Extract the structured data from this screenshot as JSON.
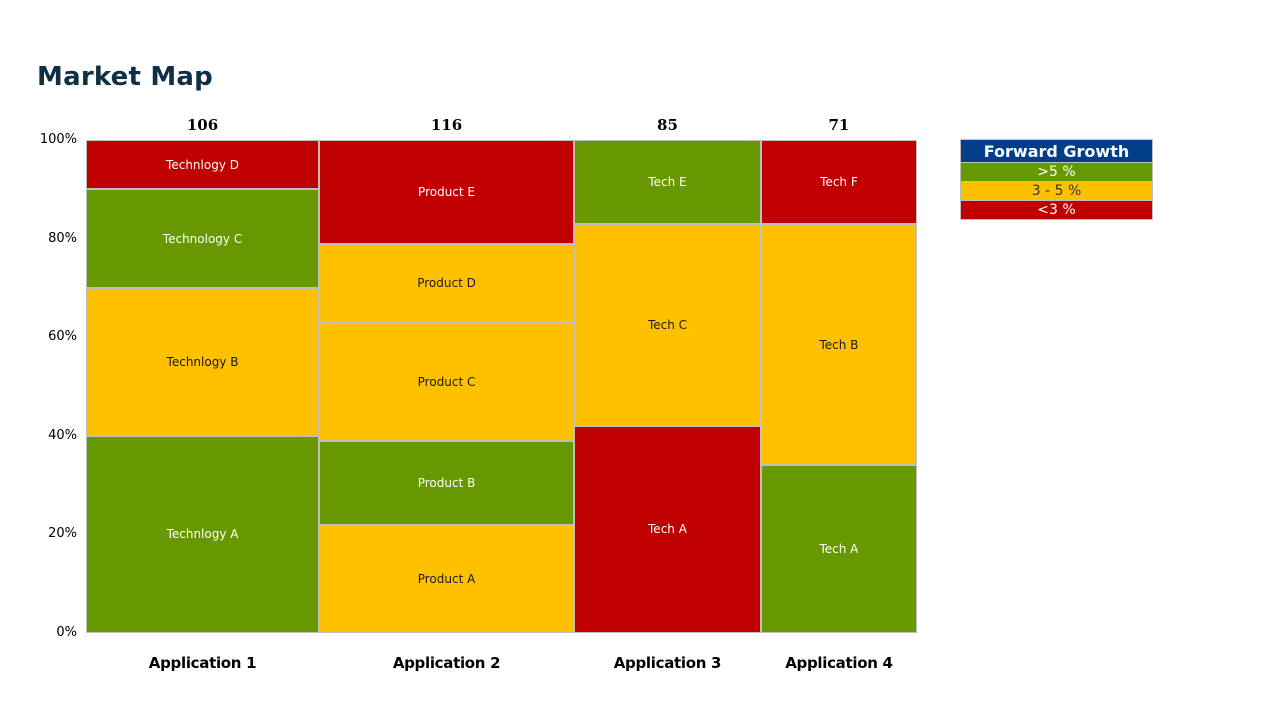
{
  "slide": {
    "title": "Market Map"
  },
  "colors": {
    "green": "#669900",
    "amber": "#ffc000",
    "red": "#c00000",
    "legend_header": "#003f87",
    "border": "#bfbfbf",
    "title": "#0f2f45"
  },
  "legend": {
    "title": "Forward Growth",
    "items": [
      {
        "label": ">5 %",
        "color": "#669900",
        "text_color": "#ffffff"
      },
      {
        "label": "3 - 5 %",
        "color": "#ffc000",
        "text_color": "#333333"
      },
      {
        "label": "<3 %",
        "color": "#c00000",
        "text_color": "#ffffff"
      }
    ]
  },
  "chart_data": {
    "type": "marimekko",
    "title": "Market Map",
    "xlabel": "",
    "ylabel": "",
    "ylim": [
      0,
      100
    ],
    "y_ticks": [
      "0%",
      "20%",
      "40%",
      "60%",
      "80%",
      "100%"
    ],
    "legend_position": "right",
    "categories": [
      "Application 1",
      "Application 2",
      "Application 3",
      "Application 4"
    ],
    "totals": [
      106,
      116,
      85,
      71
    ],
    "columns": [
      {
        "category": "Application 1",
        "total": 106,
        "segments": [
          {
            "label": "Technlogy A",
            "share": 40,
            "growth": ">5 %"
          },
          {
            "label": "Technlogy B",
            "share": 30,
            "growth": "3 - 5 %"
          },
          {
            "label": "Technology C",
            "share": 20,
            "growth": ">5 %"
          },
          {
            "label": "Technlogy D",
            "share": 10,
            "growth": "<3 %"
          }
        ]
      },
      {
        "category": "Application 2",
        "total": 116,
        "segments": [
          {
            "label": "Product A",
            "share": 22,
            "growth": "3 - 5 %"
          },
          {
            "label": "Product B",
            "share": 17,
            "growth": ">5 %"
          },
          {
            "label": "Product C",
            "share": 24,
            "growth": "3 - 5 %"
          },
          {
            "label": "Product D",
            "share": 16,
            "growth": "3 - 5 %"
          },
          {
            "label": "Product E",
            "share": 21,
            "growth": "<3 %"
          }
        ]
      },
      {
        "category": "Application 3",
        "total": 85,
        "segments": [
          {
            "label": "Tech A",
            "share": 42,
            "growth": "<3 %"
          },
          {
            "label": "Tech C",
            "share": 41,
            "growth": "3 - 5 %"
          },
          {
            "label": "Tech E",
            "share": 17,
            "growth": ">5 %"
          }
        ]
      },
      {
        "category": "Application 4",
        "total": 71,
        "segments": [
          {
            "label": "Tech A",
            "share": 34,
            "growth": ">5 %"
          },
          {
            "label": "Tech B",
            "share": 49,
            "growth": "3 - 5 %"
          },
          {
            "label": "Tech F",
            "share": 17,
            "growth": "<3 %"
          }
        ]
      }
    ]
  }
}
